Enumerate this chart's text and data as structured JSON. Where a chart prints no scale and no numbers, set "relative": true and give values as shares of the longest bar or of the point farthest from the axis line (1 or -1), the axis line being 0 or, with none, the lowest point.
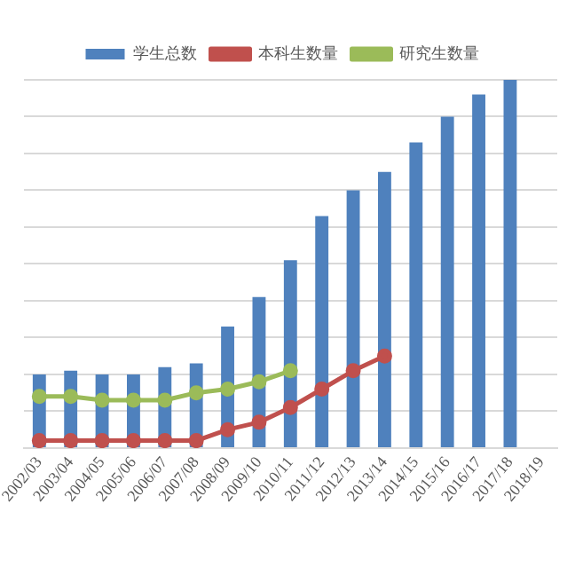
{
  "chart_data": {
    "type": "bar",
    "relative": true,
    "grid": "y",
    "legend": "top",
    "marker": "circle",
    "line_style": "solid",
    "categories": [
      "2002/03",
      "2003/04",
      "2004/05",
      "2005/06",
      "2006/07",
      "2007/08",
      "2008/09",
      "2009/10",
      "2010/11",
      "2011/12",
      "2012/13",
      "2013/14",
      "2014/15",
      "2015/16",
      "2016/17",
      "2017/18",
      "2018/19"
    ],
    "series": [
      {
        "name": "学生总数",
        "color": "#4f81bd",
        "values": [
          0.2,
          0.21,
          0.2,
          0.2,
          0.22,
          0.23,
          0.33,
          0.41,
          0.51,
          0.63,
          0.7,
          0.75,
          0.83,
          0.9,
          0.96,
          1,
          null
        ]
      },
      {
        "name": "本科生数量",
        "type": "line",
        "color": "#c0504d",
        "values": [
          0.02,
          0.02,
          0.02,
          0.02,
          0.02,
          0.02,
          0.05,
          0.07,
          0.11,
          0.16,
          0.21,
          0.25,
          null,
          null,
          null,
          null,
          null
        ]
      },
      {
        "name": "研究生数量",
        "type": "line",
        "color": "#9bbb59",
        "values": [
          0.14,
          0.14,
          0.13,
          0.13,
          0.13,
          0.15,
          0.16,
          0.18,
          0.21,
          null,
          null,
          null,
          null,
          null,
          null,
          null,
          null
        ]
      }
    ]
  }
}
